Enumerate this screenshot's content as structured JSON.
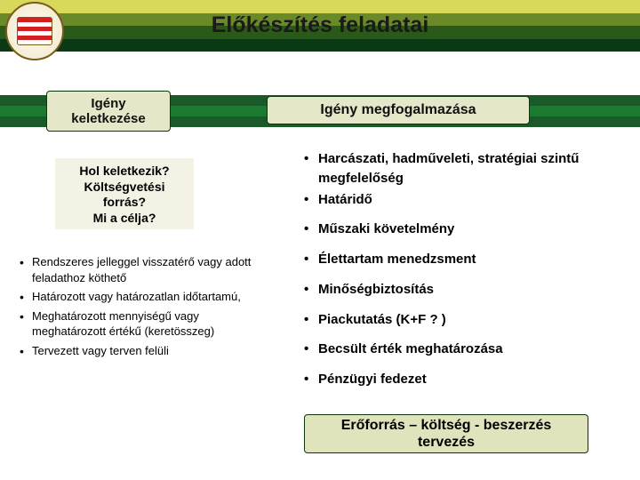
{
  "colors": {
    "stripe1": "#d8d85a",
    "stripe2": "#6a8a2a",
    "stripe3": "#2a5a1a",
    "stripe4": "#0a3a14",
    "band1": "#1a5a28",
    "band2": "#1a7a30",
    "box_bg": "#e6e6c8",
    "box_border": "#0a3a0a",
    "subbox_bg": "#f4f2e4",
    "footer_bg": "#e0e4bc"
  },
  "title": "Előkészítés feladatai",
  "box1_line1": "Igény",
  "box1_line2": "keletkezése",
  "box2": "Igény megfogalmazása",
  "subbox_l1": "Hol keletkezik?",
  "subbox_l2": "Költségvetési",
  "subbox_l3": "forrás?",
  "subbox_l4": "Mi a célja?",
  "left": [
    "Rendszeres jelleggel visszatérő vagy adott feladathoz köthető",
    "Határozott vagy határozatlan időtartamú,",
    "Meghatározott mennyiségű vagy meghatározott értékű (keretösszeg)",
    "Tervezett vagy terven felüli"
  ],
  "right": [
    "Harcászati, hadműveleti, stratégiai szintű megfelelőség",
    "Határidő",
    "Műszaki követelmény",
    "Élettartam menedzsment",
    "Minőségbiztosítás",
    "Piackutatás (K+F ? )",
    "Becsült érték meghatározása",
    "Pénzügyi fedezet"
  ],
  "footer_l1": "Erőforrás – költség - beszerzés",
  "footer_l2": "tervezés"
}
